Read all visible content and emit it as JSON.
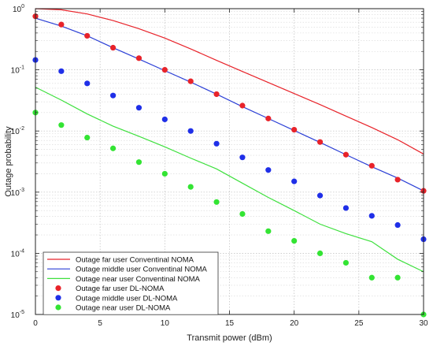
{
  "chart_data": {
    "type": "line",
    "xlabel": "Transmit power (dBm)",
    "ylabel": "Outage probability",
    "xlim": [
      0,
      30
    ],
    "ylim": [
      1e-05,
      1
    ],
    "yscale": "log",
    "grid": true,
    "legend_position": "bottom-left",
    "x_ticks": [
      0,
      5,
      10,
      15,
      20,
      25,
      30
    ],
    "y_ticks": [
      {
        "value": 1e-05,
        "base": "10",
        "exp": "-5"
      },
      {
        "value": 0.0001,
        "base": "10",
        "exp": "-4"
      },
      {
        "value": 0.001,
        "base": "10",
        "exp": "-3"
      },
      {
        "value": 0.01,
        "base": "10",
        "exp": "-2"
      },
      {
        "value": 0.1,
        "base": "10",
        "exp": "-1"
      },
      {
        "value": 1,
        "base": "10",
        "exp": "0"
      }
    ],
    "series": [
      {
        "name": "Outage far user Conventinal NOMA",
        "style": "line",
        "color": "#e8232a",
        "x": [
          0,
          2,
          4,
          6,
          8,
          10,
          12,
          14,
          16,
          18,
          20,
          22,
          24,
          26,
          28,
          30
        ],
        "y": [
          1.0,
          0.96,
          0.82,
          0.64,
          0.47,
          0.33,
          0.22,
          0.143,
          0.094,
          0.062,
          0.041,
          0.027,
          0.0175,
          0.0114,
          0.0072,
          0.0042
        ]
      },
      {
        "name": "Outage middle user Conventinal NOMA",
        "style": "line",
        "color": "#2b3fd6",
        "x": [
          0,
          2,
          4,
          6,
          8,
          10,
          12,
          14,
          16,
          18,
          20,
          22,
          24,
          26,
          28,
          30
        ],
        "y": [
          0.7,
          0.52,
          0.36,
          0.23,
          0.15,
          0.097,
          0.063,
          0.04,
          0.025,
          0.016,
          0.0102,
          0.0065,
          0.0041,
          0.0026,
          0.0017,
          0.00105
        ]
      },
      {
        "name": "Outage near user Conventinal NOMA",
        "style": "line",
        "color": "#3ee03e",
        "x": [
          0,
          2,
          4,
          6,
          8,
          10,
          12,
          14,
          16,
          18,
          20,
          22,
          24,
          26,
          28,
          30
        ],
        "y": [
          0.052,
          0.032,
          0.019,
          0.012,
          0.0082,
          0.0055,
          0.0036,
          0.0024,
          0.0014,
          0.00082,
          0.0005,
          0.0003,
          0.00021,
          0.000155,
          8e-05,
          5e-05
        ]
      },
      {
        "name": "Outage far user DL-NOMA",
        "style": "marker",
        "color": "#e8232a",
        "x": [
          0,
          2,
          4,
          6,
          8,
          10,
          12,
          14,
          16,
          18,
          20,
          22,
          24,
          26,
          28,
          30
        ],
        "y": [
          0.75,
          0.55,
          0.36,
          0.23,
          0.155,
          0.1,
          0.065,
          0.04,
          0.026,
          0.016,
          0.0105,
          0.0066,
          0.0041,
          0.0027,
          0.0016,
          0.00105
        ]
      },
      {
        "name": "Outage middle user DL-NOMA",
        "style": "marker",
        "color": "#1f2fe8",
        "x": [
          0,
          2,
          4,
          6,
          8,
          10,
          12,
          14,
          16,
          18,
          20,
          22,
          24,
          26,
          28,
          30
        ],
        "y": [
          0.145,
          0.095,
          0.06,
          0.038,
          0.024,
          0.0155,
          0.01,
          0.0062,
          0.0037,
          0.0023,
          0.0015,
          0.00088,
          0.00055,
          0.00041,
          0.00029,
          0.00017
        ]
      },
      {
        "name": "Outage near user DL-NOMA",
        "style": "marker",
        "color": "#33e433",
        "x": [
          0,
          2,
          4,
          6,
          8,
          10,
          12,
          14,
          16,
          18,
          20,
          22,
          24,
          26,
          28,
          30
        ],
        "y": [
          0.02,
          0.0125,
          0.0078,
          0.0052,
          0.0031,
          0.002,
          0.00122,
          0.00069,
          0.00044,
          0.00023,
          0.00016,
          0.0001,
          7e-05,
          4e-05,
          4e-05,
          1e-05
        ]
      }
    ]
  }
}
